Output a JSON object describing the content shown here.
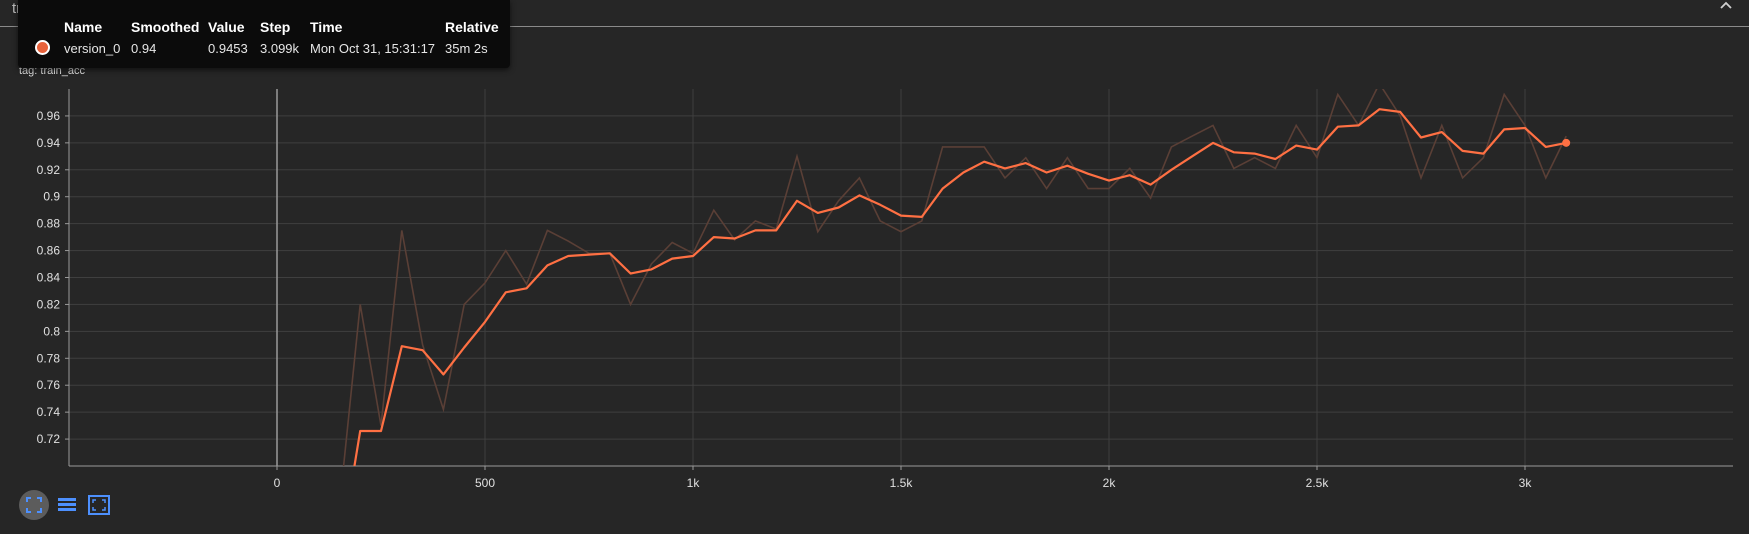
{
  "card": {
    "title": "train_acc",
    "collapse_icon": "chevron-up-icon"
  },
  "chart_header": {
    "title": "train_acc",
    "tag": "tag: train_acc"
  },
  "tooltip": {
    "headers": {
      "name": "Name",
      "smoothed": "Smoothed",
      "value": "Value",
      "step": "Step",
      "time": "Time",
      "relative": "Relative"
    },
    "row": {
      "name": "version_0",
      "smoothed": "0.94",
      "value": "0.9453",
      "step": "3.099k",
      "time": "Mon Oct 31, 15:31:17",
      "relative": "35m 2s",
      "color": "#e8623b"
    }
  },
  "toolbar": {
    "buttons": [
      {
        "icon": "fit-domain-icon",
        "active": true
      },
      {
        "icon": "data-table-icon",
        "active": false
      },
      {
        "icon": "fullscreen-icon",
        "active": false
      }
    ]
  },
  "colors": {
    "background": "#262626",
    "grid": "#3f3f3f",
    "smoothed_line": "#ff7043",
    "raw_line": "#5a3f36",
    "axis_text": "#e0e0e0"
  },
  "chart_data": {
    "type": "line",
    "title": "train_acc",
    "xlabel": "",
    "ylabel": "",
    "xlim": [
      -500,
      3500
    ],
    "ylim": [
      0.7,
      0.98
    ],
    "x_ticks": [
      0,
      500,
      1000,
      1500,
      2000,
      2500,
      3000
    ],
    "x_tick_labels": [
      "0",
      "500",
      "1k",
      "1.5k",
      "2k",
      "2.5k",
      "3k"
    ],
    "y_ticks": [
      0.72,
      0.74,
      0.76,
      0.78,
      0.8,
      0.82,
      0.84,
      0.86,
      0.88,
      0.9,
      0.92,
      0.94,
      0.96
    ],
    "y_tick_labels": [
      "0.72",
      "0.74",
      "0.76",
      "0.78",
      "0.8",
      "0.82",
      "0.84",
      "0.86",
      "0.88",
      "0.9",
      "0.92",
      "0.94",
      "0.96"
    ],
    "grid": true,
    "series": [
      {
        "name": "version_0",
        "smoothed": true,
        "x": [
          160,
          185,
          200,
          250,
          300,
          350,
          400,
          450,
          500,
          550,
          600,
          650,
          700,
          750,
          800,
          850,
          900,
          950,
          1000,
          1050,
          1100,
          1150,
          1200,
          1250,
          1300,
          1350,
          1400,
          1450,
          1500,
          1550,
          1600,
          1650,
          1700,
          1750,
          1800,
          1850,
          1900,
          1950,
          2000,
          2050,
          2100,
          2150,
          2200,
          2250,
          2300,
          2350,
          2400,
          2450,
          2500,
          2550,
          2600,
          2650,
          2700,
          2750,
          2800,
          2850,
          2900,
          2950,
          3000,
          3050,
          3099
        ],
        "y": [
          0.675,
          0.698,
          0.726,
          0.726,
          0.789,
          0.786,
          0.768,
          0.788,
          0.807,
          0.829,
          0.832,
          0.849,
          0.856,
          0.857,
          0.858,
          0.843,
          0.846,
          0.854,
          0.856,
          0.87,
          0.869,
          0.875,
          0.875,
          0.897,
          0.888,
          0.892,
          0.901,
          0.894,
          0.886,
          0.885,
          0.906,
          0.918,
          0.926,
          0.921,
          0.925,
          0.918,
          0.923,
          0.917,
          0.912,
          0.916,
          0.909,
          0.92,
          0.93,
          0.94,
          0.933,
          0.932,
          0.928,
          0.938,
          0.935,
          0.952,
          0.953,
          0.965,
          0.963,
          0.944,
          0.948,
          0.934,
          0.932,
          0.95,
          0.951,
          0.937,
          0.94
        ]
      },
      {
        "name": "version_0",
        "smoothed": false,
        "x": [
          160,
          200,
          250,
          300,
          350,
          400,
          450,
          500,
          550,
          600,
          650,
          700,
          750,
          800,
          850,
          900,
          950,
          1000,
          1050,
          1100,
          1150,
          1200,
          1250,
          1300,
          1350,
          1400,
          1450,
          1500,
          1550,
          1600,
          1650,
          1700,
          1750,
          1800,
          1850,
          1900,
          1950,
          2000,
          2050,
          2100,
          2150,
          2200,
          2250,
          2300,
          2350,
          2400,
          2450,
          2500,
          2550,
          2600,
          2650,
          2700,
          2750,
          2800,
          2850,
          2900,
          2950,
          3000,
          3050,
          3099
        ],
        "y": [
          0.7,
          0.82,
          0.73,
          0.875,
          0.79,
          0.742,
          0.82,
          0.836,
          0.86,
          0.835,
          0.875,
          0.867,
          0.858,
          0.858,
          0.82,
          0.85,
          0.866,
          0.858,
          0.89,
          0.868,
          0.882,
          0.876,
          0.93,
          0.874,
          0.897,
          0.914,
          0.882,
          0.874,
          0.882,
          0.937,
          0.937,
          0.937,
          0.914,
          0.929,
          0.906,
          0.929,
          0.906,
          0.906,
          0.921,
          0.899,
          0.937,
          0.945,
          0.953,
          0.921,
          0.929,
          0.921,
          0.953,
          0.929,
          0.976,
          0.953,
          0.984,
          0.96,
          0.914,
          0.953,
          0.914,
          0.929,
          0.976,
          0.953,
          0.914,
          0.945
        ]
      }
    ]
  }
}
